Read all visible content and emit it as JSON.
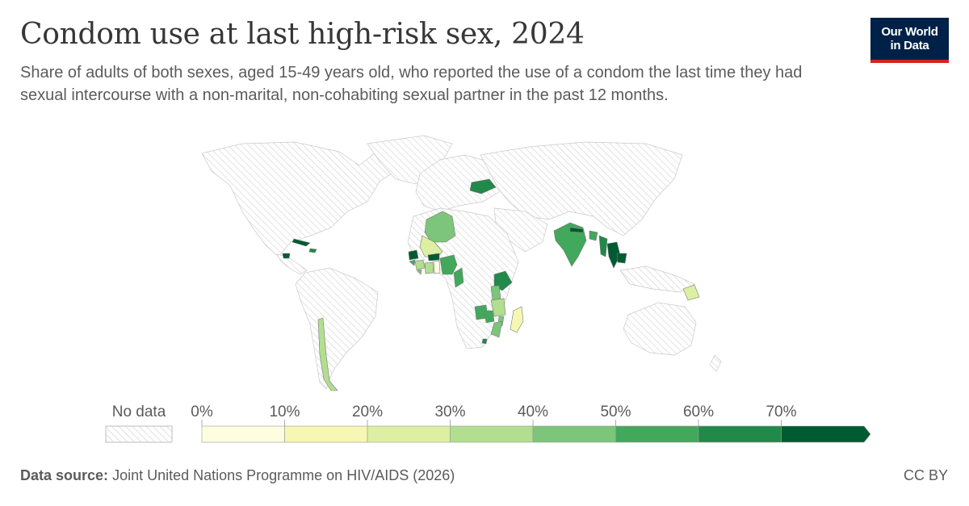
{
  "header": {
    "title": "Condom use at last high-risk sex, 2024",
    "subtitle": "Share of adults of both sexes, aged 15-49 years old, who reported the use of a condom the last time they had sexual intercourse with a non-marital, non-cohabiting sexual partner in the past 12 months."
  },
  "logo": {
    "line1": "Our World",
    "line2": "in Data"
  },
  "legend": {
    "no_data_label": "No data",
    "ticks": [
      "0%",
      "10%",
      "20%",
      "30%",
      "40%",
      "50%",
      "60%",
      "70%"
    ],
    "bins": [
      {
        "from": 0,
        "to": 10,
        "color": "#fffde0"
      },
      {
        "from": 10,
        "to": 20,
        "color": "#f7f7b4"
      },
      {
        "from": 20,
        "to": 30,
        "color": "#dcefa3"
      },
      {
        "from": 30,
        "to": 40,
        "color": "#b1de8f"
      },
      {
        "from": 40,
        "to": 50,
        "color": "#7cc57a"
      },
      {
        "from": 50,
        "to": 60,
        "color": "#42a85c"
      },
      {
        "from": 60,
        "to": 70,
        "color": "#21894a"
      },
      {
        "from": 70,
        "to": 100,
        "color": "#005a32"
      }
    ]
  },
  "footer": {
    "source_label": "Data source:",
    "source_text": "Joint United Nations Programme on HIV/AIDS (2026)",
    "license": "CC BY"
  }
}
